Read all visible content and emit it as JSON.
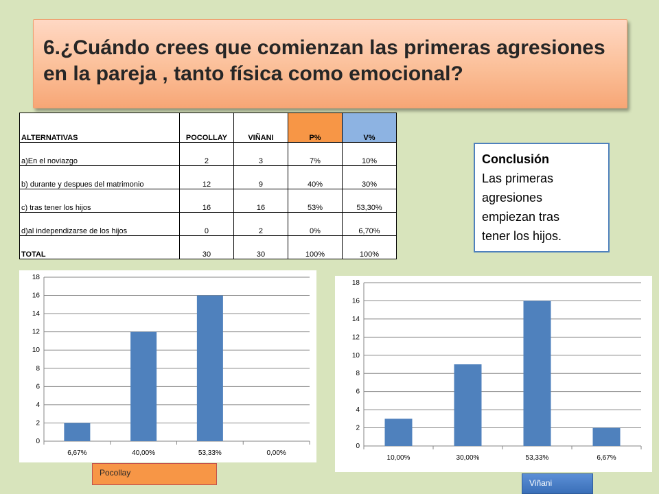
{
  "title": "6.¿Cuándo crees que comienzan las primeras agresiones en la pareja , tanto física como emocional?",
  "table": {
    "headers": [
      "ALTERNATIVAS",
      "POCOLLAY",
      "VIÑANI",
      "P%",
      "V%"
    ],
    "rows": [
      [
        "a)En el noviazgo",
        "2",
        "3",
        "7%",
        "10%"
      ],
      [
        "b) durante y despues del matrimonio",
        "12",
        "9",
        "40%",
        "30%"
      ],
      [
        "c) tras tener los hijos",
        "16",
        "16",
        "53%",
        "53,30%"
      ],
      [
        "d)al independizarse de los hijos",
        "0",
        "2",
        "0%",
        "6,70%"
      ],
      [
        "TOTAL",
        "30",
        "30",
        "100%",
        "100%"
      ]
    ]
  },
  "conclusion": {
    "heading": "Conclusión",
    "lines": [
      "Las primeras",
      "agresiones",
      "empiezan tras",
      "tener los hijos."
    ]
  },
  "colors": {
    "bar": "#4f81bd",
    "pocollay_tag": "#f79646",
    "vinani_tag": "#4a7fc8"
  },
  "chart_data": [
    {
      "type": "bar",
      "categories": [
        "6,67%",
        "40,00%",
        "53,33%",
        "0,00%"
      ],
      "values": [
        2,
        12,
        16,
        0
      ],
      "ylim": [
        0,
        18
      ],
      "yticks": [
        0,
        2,
        4,
        6,
        8,
        10,
        12,
        14,
        16,
        18
      ],
      "grid": true,
      "legend_label": "Pocollay"
    },
    {
      "type": "bar",
      "categories": [
        "10,00%",
        "30,00%",
        "53,33%",
        "6,67%"
      ],
      "values": [
        3,
        9,
        16,
        2
      ],
      "ylim": [
        0,
        18
      ],
      "yticks": [
        0,
        2,
        4,
        6,
        8,
        10,
        12,
        14,
        16,
        18
      ],
      "grid": true,
      "legend_label": "Viñani"
    }
  ]
}
